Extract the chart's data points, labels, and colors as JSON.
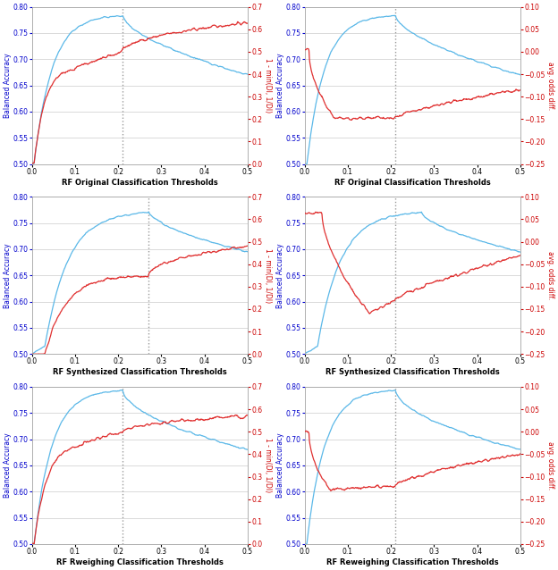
{
  "figsize": [
    6.24,
    6.38
  ],
  "dpi": 100,
  "xlim": [
    0.0,
    0.5
  ],
  "blue_ylim": [
    0.5,
    0.8
  ],
  "red_ylim_DI": [
    0.0,
    0.7
  ],
  "red_ylim_odds": [
    -0.25,
    0.1
  ],
  "blue_color": "#5bb8e8",
  "blue_label_color": "#0000cc",
  "red_color": "#e03030",
  "red_label_color": "#cc0000",
  "dashed_line_color": "#999999",
  "grid_color": "#cccccc",
  "xlabels": [
    "RF Original Classification Thresholds",
    "RF Original Classification Thresholds",
    "RF Synthesized Classification Thresholds",
    "RF Synthesized Classification Thresholds",
    "RF Rweighing Classification Thresholds",
    "RF Reweighing Classification Thresholds"
  ],
  "ylabel_blue": "Balanced Accuracy",
  "ylabel_red_DI": "1 - min(DI, 1/DI)",
  "ylabel_red_odds": "avg. odds diff.",
  "red_types": [
    "DI",
    "odds",
    "DI",
    "odds",
    "DI",
    "odds"
  ],
  "vline_positions": [
    0.21,
    0.21,
    0.27,
    0.21,
    0.21,
    0.21
  ],
  "label_fontsize": 6.0,
  "tick_fontsize": 5.5,
  "axis_label_fontsize": 5.5
}
